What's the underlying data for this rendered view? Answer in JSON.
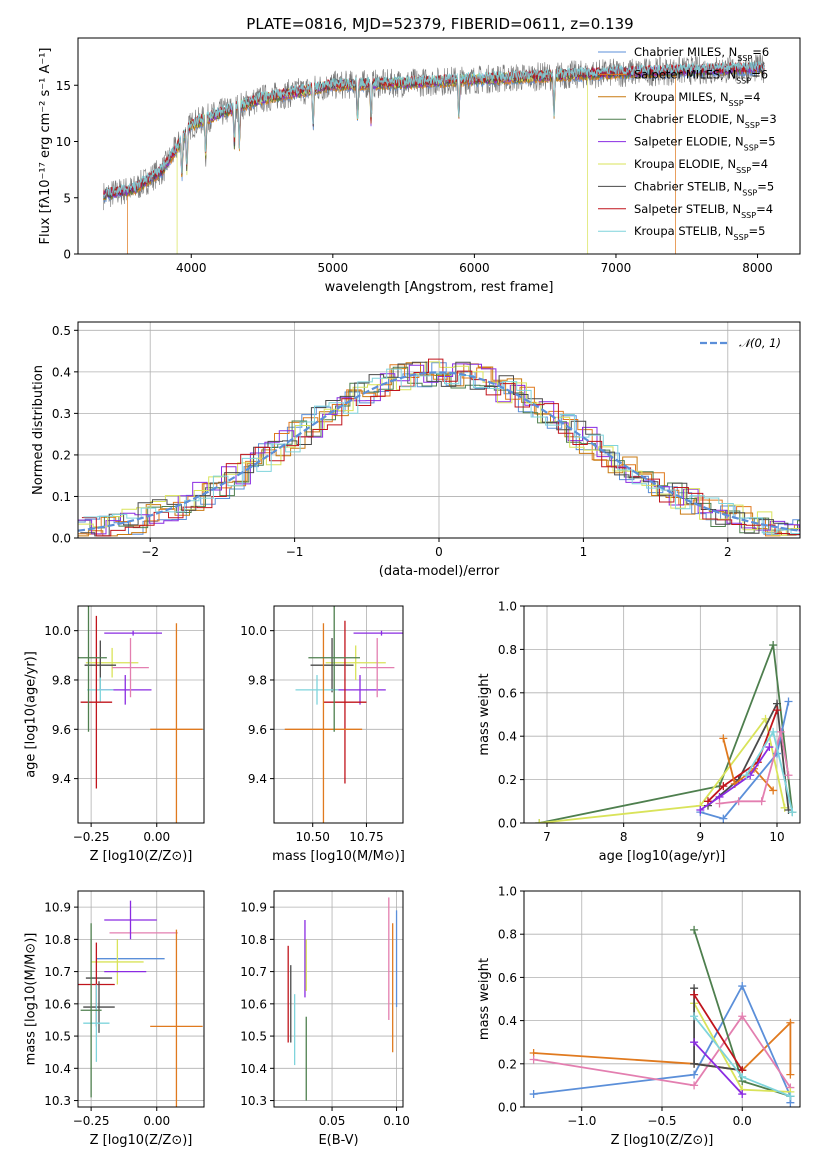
{
  "figure": {
    "title": "PLATE=0816, MJD=52379, FIBERID=0611, z=0.139"
  },
  "colors": {
    "chabrier_miles": "#5b8fd9",
    "salpeter_miles": "#e07a1f",
    "kroupa_miles": "#c97a10",
    "chabrier_elodie": "#4e7f4e",
    "salpeter_elodie": "#8a2be2",
    "kroupa_elodie": "#d9e35a",
    "chabrier_stelib": "#4a4a4a",
    "salpeter_stelib": "#c0141c",
    "kroupa_stelib": "#7fd4dc",
    "pink": "#e37fb0",
    "gaussian": "#5b8fd9"
  },
  "chart_data": [
    {
      "type": "line",
      "panel": "spectrum",
      "xlabel": "wavelength [Angstrom, rest frame]",
      "ylabel": "Flux [fλ10⁻¹⁷ erg cm⁻² s⁻¹ A⁻¹]",
      "xlim": [
        3200,
        8300
      ],
      "ylim": [
        0,
        19.2
      ],
      "xticks": [
        "4000",
        "5000",
        "6000",
        "7000",
        "8000"
      ],
      "yticks": [
        "0",
        "5",
        "10",
        "15"
      ],
      "legend_placement": "upper-right",
      "legend": [
        "Chabrier MILES, N_SSP=6",
        "Salpeter MILES, N_SSP=6",
        "Kroupa MILES, N_SSP=4",
        "Chabrier ELODIE, N_SSP=3",
        "Salpeter ELODIE, N_SSP=5",
        "Kroupa ELODIE, N_SSP=4",
        "Chabrier STELIB, N_SSP=5",
        "Salpeter STELIB, N_SSP=4",
        "Kroupa STELIB, N_SSP=5"
      ],
      "continuum": {
        "x": [
          3380,
          3600,
          3800,
          4000,
          4200,
          4500,
          5000,
          5500,
          6000,
          6500,
          7000,
          7500,
          8050
        ],
        "y": [
          5.2,
          5.8,
          7.5,
          11.5,
          12.5,
          13.8,
          15.0,
          15.2,
          15.5,
          15.8,
          16.1,
          16.3,
          16.5
        ]
      },
      "series_notes": {
        "salpeter_miles_range": [
          3550,
          7420
        ],
        "kroupa_elodie_range": [
          3900,
          6800
        ]
      },
      "grid": false
    },
    {
      "type": "bar",
      "panel": "residual_histogram",
      "xlabel": "(data-model)/error",
      "ylabel": "Normed distribution",
      "xlim": [
        -2.5,
        2.5
      ],
      "ylim": [
        0,
        0.52
      ],
      "xticks": [
        "−2",
        "−1",
        "0",
        "1",
        "2"
      ],
      "yticks": [
        "0.0",
        "0.1",
        "0.2",
        "0.3",
        "0.4",
        "0.5"
      ],
      "grid": true,
      "gaussian_label": "𝒩(0, 1)",
      "bin_width": 0.1
    },
    {
      "type": "scatter",
      "panel": "age_vs_Z",
      "xlabel": "Z [log10(Z/Z⊙)]",
      "ylabel": "age  [log10(age/yr)]",
      "xlim": [
        -0.3,
        0.18
      ],
      "ylim": [
        9.22,
        10.1
      ],
      "xticks": [
        "−0.25",
        "0.00"
      ],
      "yticks": [
        "9.4",
        "9.6",
        "9.8",
        "10.0"
      ],
      "grid": true,
      "points": [
        {
          "x": -0.09,
          "xerr": 0.11,
          "y": 9.99,
          "yerr": 0.01,
          "color": "salpeter_elodie"
        },
        {
          "x": -0.17,
          "xerr": 0.1,
          "y": 9.87,
          "yerr": 0.06,
          "color": "kroupa_elodie"
        },
        {
          "x": -0.215,
          "xerr": 0.06,
          "y": 9.86,
          "yerr": 0.1,
          "color": "chabrier_stelib"
        },
        {
          "x": -0.12,
          "xerr": 0.1,
          "y": 9.76,
          "yerr": 0.06,
          "color": "salpeter_elodie"
        },
        {
          "x": -0.215,
          "xerr": 0.05,
          "y": 9.76,
          "yerr": 0.05,
          "color": "kroupa_stelib"
        },
        {
          "x": -0.23,
          "xerr": 0.06,
          "y": 9.71,
          "yerr": 0.35,
          "color": "salpeter_stelib"
        },
        {
          "x": 0.075,
          "xerr": 0.1,
          "y": 9.6,
          "yerr": 0.43,
          "color": "salpeter_miles"
        },
        {
          "x": -0.26,
          "xerr": 0.07,
          "y": 9.89,
          "yerr": 0.3,
          "color": "chabrier_elodie"
        },
        {
          "x": -0.1,
          "xerr": 0.07,
          "y": 9.85,
          "yerr": 0.12,
          "color": "pink"
        }
      ]
    },
    {
      "type": "scatter",
      "panel": "age_vs_mass",
      "xlabel": "mass [log10(M/M⊙)]",
      "ylabel": "",
      "xlim": [
        10.32,
        10.92
      ],
      "ylim": [
        9.22,
        10.1
      ],
      "xticks": [
        "10.50",
        "10.75"
      ],
      "yticks": [
        "9.4",
        "9.6",
        "9.8",
        "10.0"
      ],
      "grid": true,
      "points": [
        {
          "x": 10.82,
          "xerr": 0.13,
          "y": 9.99,
          "yerr": 0.01,
          "color": "salpeter_elodie"
        },
        {
          "x": 10.7,
          "xerr": 0.14,
          "y": 9.87,
          "yerr": 0.07,
          "color": "kroupa_elodie"
        },
        {
          "x": 10.59,
          "xerr": 0.1,
          "y": 9.86,
          "yerr": 0.11,
          "color": "chabrier_stelib"
        },
        {
          "x": 10.72,
          "xerr": 0.12,
          "y": 9.76,
          "yerr": 0.06,
          "color": "salpeter_elodie"
        },
        {
          "x": 10.52,
          "xerr": 0.1,
          "y": 9.76,
          "yerr": 0.06,
          "color": "kroupa_stelib"
        },
        {
          "x": 10.65,
          "xerr": 0.1,
          "y": 9.71,
          "yerr": 0.33,
          "color": "salpeter_stelib"
        },
        {
          "x": 10.55,
          "xerr": 0.18,
          "y": 9.6,
          "yerr": 0.43,
          "color": "salpeter_miles"
        },
        {
          "x": 10.6,
          "xerr": 0.12,
          "y": 9.89,
          "yerr": 0.3,
          "color": "chabrier_elodie"
        },
        {
          "x": 10.8,
          "xerr": 0.08,
          "y": 9.85,
          "yerr": 0.12,
          "color": "pink"
        }
      ]
    },
    {
      "type": "line",
      "panel": "mass_weight_vs_age",
      "xlabel": "age  [log10(age/yr)]",
      "ylabel": "mass weight",
      "xlim": [
        6.7,
        10.3
      ],
      "ylim": [
        0,
        1.0
      ],
      "xticks": [
        "7",
        "8",
        "9",
        "10"
      ],
      "yticks": [
        "0.0",
        "0.2",
        "0.4",
        "0.6",
        "0.8",
        "1.0"
      ],
      "grid": true,
      "series": [
        {
          "color": "chabrier_elodie",
          "x": [
            6.9,
            9.25,
            9.95,
            10.2
          ],
          "y": [
            0.0,
            0.17,
            0.82,
            0.05
          ]
        },
        {
          "color": "kroupa_elodie",
          "x": [
            6.9,
            9.0,
            9.85,
            10.1
          ],
          "y": [
            0.0,
            0.08,
            0.48,
            0.07
          ]
        },
        {
          "color": "chabrier_stelib",
          "x": [
            9.1,
            9.5,
            10.0,
            10.15
          ],
          "y": [
            0.08,
            0.2,
            0.55,
            0.06
          ]
        },
        {
          "color": "salpeter_stelib",
          "x": [
            9.1,
            9.3,
            9.75,
            10.0
          ],
          "y": [
            0.1,
            0.17,
            0.28,
            0.52
          ]
        },
        {
          "color": "salpeter_miles",
          "x": [
            9.3,
            9.45,
            9.7,
            9.95
          ],
          "y": [
            0.39,
            0.18,
            0.25,
            0.15
          ]
        },
        {
          "color": "chabrier_miles",
          "x": [
            9.0,
            9.3,
            10.0,
            10.15
          ],
          "y": [
            0.05,
            0.02,
            0.32,
            0.56
          ]
        },
        {
          "color": "salpeter_elodie",
          "x": [
            9.0,
            9.25,
            9.65,
            9.9
          ],
          "y": [
            0.06,
            0.12,
            0.22,
            0.35
          ]
        },
        {
          "color": "pink",
          "x": [
            9.25,
            9.5,
            9.8,
            10.05,
            10.15
          ],
          "y": [
            0.09,
            0.1,
            0.1,
            0.42,
            0.22
          ]
        },
        {
          "color": "kroupa_stelib",
          "x": [
            9.6,
            9.95,
            10.2
          ],
          "y": [
            0.22,
            0.42,
            0.05
          ]
        }
      ]
    },
    {
      "type": "scatter",
      "panel": "mass_vs_Z",
      "xlabel": "Z [log10(Z/Z⊙)]",
      "ylabel": "mass [log10(M/M⊙)]",
      "xlim": [
        -0.3,
        0.18
      ],
      "ylim": [
        10.28,
        10.95
      ],
      "xticks": [
        "−0.25",
        "0.00"
      ],
      "yticks": [
        "10.3",
        "10.4",
        "10.5",
        "10.6",
        "10.7",
        "10.8",
        "10.9"
      ],
      "grid": true,
      "points": [
        {
          "x": -0.05,
          "xerr": 0.13,
          "y": 10.82,
          "yerr": 0.0,
          "color": "pink"
        },
        {
          "x": -0.1,
          "xerr": 0.1,
          "y": 10.86,
          "yerr": 0.06,
          "color": "salpeter_elodie"
        },
        {
          "x": -0.1,
          "xerr": 0.13,
          "y": 10.74,
          "yerr": 0.0,
          "color": "chabrier_miles"
        },
        {
          "x": -0.15,
          "xerr": 0.1,
          "y": 10.73,
          "yerr": 0.07,
          "color": "kroupa_elodie"
        },
        {
          "x": -0.12,
          "xerr": 0.08,
          "y": 10.7,
          "yerr": 0.0,
          "color": "salpeter_elodie"
        },
        {
          "x": -0.22,
          "xerr": 0.05,
          "y": 10.68,
          "yerr": 0.0,
          "color": "chabrier_stelib"
        },
        {
          "x": -0.23,
          "xerr": 0.07,
          "y": 10.66,
          "yerr": 0.13,
          "color": "salpeter_stelib"
        },
        {
          "x": -0.22,
          "xerr": 0.06,
          "y": 10.59,
          "yerr": 0.08,
          "color": "chabrier_stelib"
        },
        {
          "x": -0.23,
          "xerr": 0.05,
          "y": 10.54,
          "yerr": 0.12,
          "color": "kroupa_stelib"
        },
        {
          "x": 0.075,
          "xerr": 0.1,
          "y": 10.53,
          "yerr": 0.3,
          "color": "salpeter_miles"
        },
        {
          "x": -0.25,
          "xerr": 0.04,
          "y": 10.58,
          "yerr": 0.27,
          "color": "chabrier_elodie"
        }
      ]
    },
    {
      "type": "scatter",
      "panel": "mass_vs_ebv",
      "xlabel": "E(B-V)",
      "ylabel": "",
      "xlim": [
        0.005,
        0.105
      ],
      "ylim": [
        10.28,
        10.95
      ],
      "xticks": [
        "0.05",
        "0.10"
      ],
      "yticks": [
        "10.3",
        "10.4",
        "10.5",
        "10.6",
        "10.7",
        "10.8",
        "10.9"
      ],
      "grid": true,
      "points": [
        {
          "x": 0.016,
          "y": 10.63,
          "yerr": 0.15,
          "color": "salpeter_stelib"
        },
        {
          "x": 0.018,
          "y": 10.6,
          "yerr": 0.12,
          "color": "chabrier_stelib"
        },
        {
          "x": 0.021,
          "y": 10.52,
          "yerr": 0.11,
          "color": "kroupa_stelib"
        },
        {
          "x": 0.029,
          "y": 10.74,
          "yerr": 0.12,
          "color": "salpeter_elodie"
        },
        {
          "x": 0.03,
          "y": 10.72,
          "yerr": 0.08,
          "color": "kroupa_elodie"
        },
        {
          "x": 0.03,
          "y": 10.43,
          "yerr": 0.13,
          "color": "chabrier_elodie"
        },
        {
          "x": 0.094,
          "y": 10.74,
          "yerr": 0.19,
          "color": "pink"
        },
        {
          "x": 0.097,
          "y": 10.65,
          "yerr": 0.2,
          "color": "salpeter_miles"
        },
        {
          "x": 0.1,
          "y": 10.74,
          "yerr": 0.15,
          "color": "chabrier_miles"
        }
      ]
    },
    {
      "type": "line",
      "panel": "mass_weight_vs_Z",
      "xlabel": "Z [log10(Z/Z⊙)]",
      "ylabel": "mass weight",
      "xlim": [
        -1.36,
        0.36
      ],
      "ylim": [
        0,
        1.0
      ],
      "xticks": [
        "−1.0",
        "−0.5",
        "0.0"
      ],
      "yticks": [
        "0.0",
        "0.2",
        "0.4",
        "0.6",
        "0.8",
        "1.0"
      ],
      "grid": true,
      "series": [
        {
          "color": "salpeter_miles",
          "x": [
            -1.3,
            -0.3,
            0.0,
            0.3,
            0.3
          ],
          "y": [
            0.25,
            0.2,
            0.17,
            0.39,
            0.15
          ]
        },
        {
          "color": "chabrier_miles",
          "x": [
            -1.3,
            -0.3,
            0.0,
            0.3,
            0.3
          ],
          "y": [
            0.06,
            0.15,
            0.56,
            0.05,
            0.02
          ]
        },
        {
          "color": "pink",
          "x": [
            -1.3,
            -0.3,
            0.0,
            0.3
          ],
          "y": [
            0.22,
            0.1,
            0.42,
            0.09
          ]
        },
        {
          "color": "chabrier_elodie",
          "x": [
            -0.3,
            0.0,
            0.3
          ],
          "y": [
            0.82,
            0.12,
            0.05
          ]
        },
        {
          "color": "kroupa_elodie",
          "x": [
            -0.3,
            0.0,
            0.3
          ],
          "y": [
            0.48,
            0.08,
            0.07
          ]
        },
        {
          "color": "chabrier_stelib",
          "x": [
            -0.3,
            -0.3,
            0.0
          ],
          "y": [
            0.55,
            0.2,
            0.17
          ]
        },
        {
          "color": "salpeter_stelib",
          "x": [
            -0.3,
            0.0
          ],
          "y": [
            0.52,
            0.17
          ]
        },
        {
          "color": "kroupa_stelib",
          "x": [
            -0.3,
            0.0,
            0.3
          ],
          "y": [
            0.42,
            0.14,
            0.05
          ]
        },
        {
          "color": "salpeter_elodie",
          "x": [
            -0.3,
            0.0
          ],
          "y": [
            0.3,
            0.06
          ]
        }
      ]
    }
  ]
}
